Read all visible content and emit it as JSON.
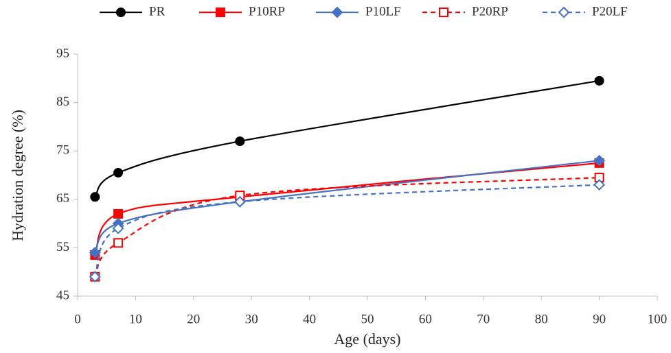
{
  "chart_data": {
    "type": "line",
    "x_label": "Age (days)",
    "y_label": "Hydration degree (%)",
    "x": [
      3,
      7,
      28,
      90
    ],
    "series": [
      {
        "name": "PR",
        "color": "#000000",
        "values": [
          65.5,
          70.5,
          77,
          89.5
        ],
        "marker": "circle",
        "filled": true,
        "dashed": false
      },
      {
        "name": "P10RP",
        "color": "#ff0000",
        "values": [
          53.5,
          62,
          65.5,
          72.5
        ],
        "marker": "square",
        "filled": true,
        "dashed": false
      },
      {
        "name": "P10LF",
        "color": "#4472c4",
        "values": [
          54,
          60,
          64.5,
          73
        ],
        "marker": "diamond",
        "filled": true,
        "dashed": false
      },
      {
        "name": "P20RP",
        "color": "#ff0000",
        "values": [
          49,
          56,
          65.8,
          69.5
        ],
        "marker": "square",
        "filled": false,
        "dashed": true
      },
      {
        "name": "P20LF",
        "color": "#4472c4",
        "values": [
          49,
          59,
          64.5,
          68
        ],
        "marker": "diamond",
        "filled": false,
        "dashed": true
      }
    ],
    "xlim": [
      0,
      100
    ],
    "xticks": [
      0,
      10,
      20,
      30,
      40,
      50,
      60,
      70,
      80,
      90,
      100
    ],
    "ylim": [
      45,
      95
    ],
    "yticks": [
      45,
      55,
      65,
      75,
      85,
      95
    ],
    "grid": false,
    "legend": "top"
  }
}
